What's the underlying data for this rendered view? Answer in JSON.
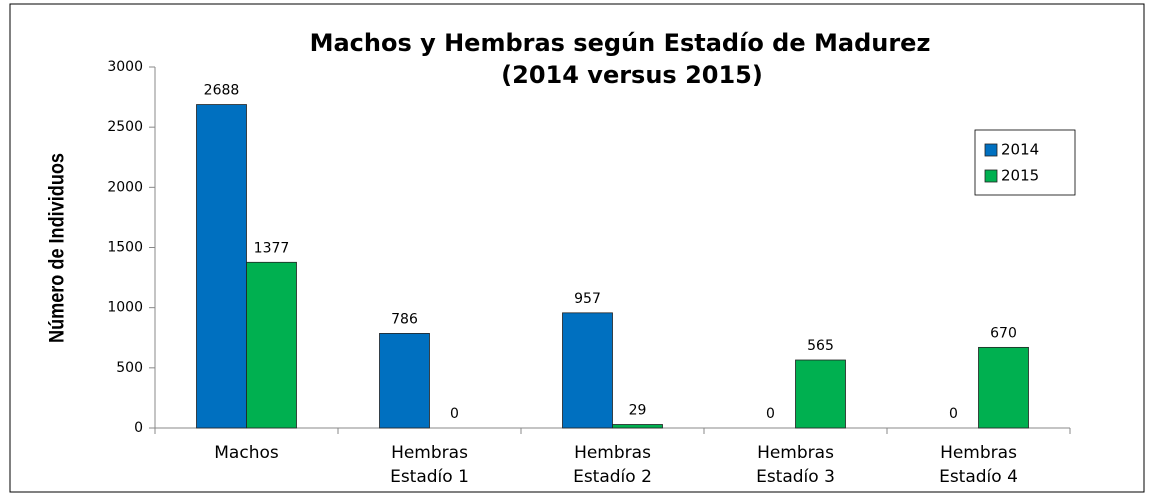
{
  "chart_data": {
    "type": "bar",
    "title": "Machos y Hembras según Estadío de Madurez",
    "subtitle": "(2014 versus 2015)",
    "y_label": "Número de Individuos",
    "categories": [
      "Machos",
      "Hembras Estadío 1",
      "Hembras Estadío 2",
      "Hembras Estadío 3",
      "Hembras Estadío 4"
    ],
    "series": [
      {
        "name": "2014",
        "color": "#0070c0",
        "values": [
          2688,
          786,
          957,
          0,
          0
        ]
      },
      {
        "name": "2015",
        "color": "#00b050",
        "values": [
          1377,
          0,
          29,
          565,
          670
        ]
      }
    ],
    "ylim": [
      0,
      3000
    ],
    "yticks": [
      0,
      500,
      1000,
      1500,
      2000,
      2500,
      3000
    ],
    "grid": false,
    "legend": "upper right"
  }
}
